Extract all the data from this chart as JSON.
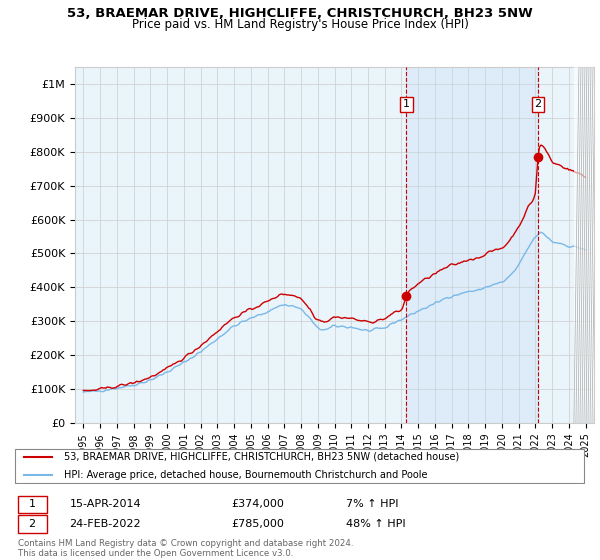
{
  "title": "53, BRAEMAR DRIVE, HIGHCLIFFE, CHRISTCHURCH, BH23 5NW",
  "subtitle": "Price paid vs. HM Land Registry's House Price Index (HPI)",
  "legend_line1": "53, BRAEMAR DRIVE, HIGHCLIFFE, CHRISTCHURCH, BH23 5NW (detached house)",
  "legend_line2": "HPI: Average price, detached house, Bournemouth Christchurch and Poole",
  "footer": "Contains HM Land Registry data © Crown copyright and database right 2024.\nThis data is licensed under the Open Government Licence v3.0.",
  "ann1_label": "1",
  "ann1_date": "15-APR-2014",
  "ann1_price": "£374,000",
  "ann1_pct": "7% ↑ HPI",
  "ann1_x": 2014.29,
  "ann1_y": 374000,
  "ann2_label": "2",
  "ann2_date": "24-FEB-2022",
  "ann2_price": "£785,000",
  "ann2_pct": "48% ↑ HPI",
  "ann2_x": 2022.15,
  "ann2_y": 785000,
  "hpi_line_color": "#7ab8e8",
  "price_line_color": "#cc0000",
  "shade_color": "#d6eaf8",
  "ylim": [
    0,
    1050000
  ],
  "yticks": [
    0,
    100000,
    200000,
    300000,
    400000,
    500000,
    600000,
    700000,
    800000,
    900000,
    1000000
  ],
  "ytick_labels": [
    "£0",
    "£100K",
    "£200K",
    "£300K",
    "£400K",
    "£500K",
    "£600K",
    "£700K",
    "£800K",
    "£900K",
    "£1M"
  ],
  "xlim_start": 1994.5,
  "xlim_end": 2025.5
}
